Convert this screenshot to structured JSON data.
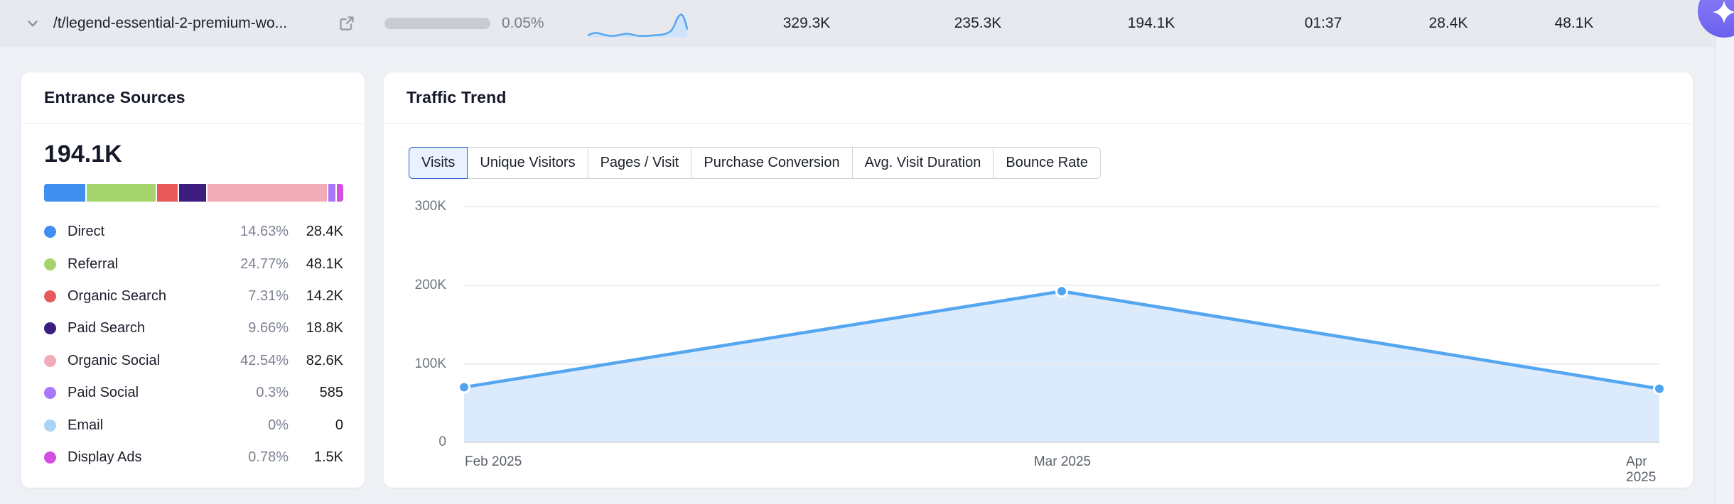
{
  "top_row": {
    "path": "/t/legend-essential-2-premium-wo...",
    "share_percent": "0.05%",
    "metrics": [
      "329.3K",
      "235.3K",
      "194.1K",
      "01:37",
      "28.4K",
      "48.1K"
    ]
  },
  "entrance_sources": {
    "title": "Entrance Sources",
    "total": "194.1K",
    "items": [
      {
        "label": "Direct",
        "percent": "14.63%",
        "value": "28.4K",
        "pct": 14.63,
        "color": "#3f8ef0"
      },
      {
        "label": "Referral",
        "percent": "24.77%",
        "value": "48.1K",
        "pct": 24.77,
        "color": "#a5d46c"
      },
      {
        "label": "Organic Search",
        "percent": "7.31%",
        "value": "14.2K",
        "pct": 7.31,
        "color": "#e85a5a"
      },
      {
        "label": "Paid Search",
        "percent": "9.66%",
        "value": "18.8K",
        "pct": 9.66,
        "color": "#3d1d7e"
      },
      {
        "label": "Organic Social",
        "percent": "42.54%",
        "value": "82.6K",
        "pct": 42.54,
        "color": "#f2abb8"
      },
      {
        "label": "Paid Social",
        "percent": "0.3%",
        "value": "585",
        "pct": 0.3,
        "color": "#a978f8"
      },
      {
        "label": "Email",
        "percent": "0%",
        "value": "0",
        "pct": 0,
        "color": "#a8d4f8"
      },
      {
        "label": "Display Ads",
        "percent": "0.78%",
        "value": "1.5K",
        "pct": 0.78,
        "color": "#d44fe0"
      }
    ]
  },
  "traffic_trend": {
    "title": "Traffic Trend",
    "tabs": [
      {
        "label": "Visits",
        "selected": true
      },
      {
        "label": "Unique Visitors",
        "selected": false
      },
      {
        "label": "Pages / Visit",
        "selected": false
      },
      {
        "label": "Purchase Conversion",
        "selected": false
      },
      {
        "label": "Avg. Visit Duration",
        "selected": false
      },
      {
        "label": "Bounce Rate",
        "selected": false
      }
    ]
  },
  "chart_data": {
    "type": "area",
    "title": "Traffic Trend - Visits",
    "x": [
      "Feb 2025",
      "Mar 2025",
      "Apr 2025"
    ],
    "series": [
      {
        "name": "Visits",
        "values_k": [
          70,
          192,
          68
        ]
      }
    ],
    "yticks": [
      "300K",
      "200K",
      "100K",
      "0"
    ],
    "ylim_k": [
      0,
      300
    ],
    "grid": true,
    "legend": "none",
    "line_color": "#55a6f0",
    "fill_color": "#dcebfb",
    "marker_color": "#4da4f1"
  },
  "colors": {
    "page_bg": "#eef0f5",
    "top_row_bg": "#e8e9ee",
    "accent_blue": "#3f8ef0",
    "ai_button": "#7b6ff2"
  }
}
